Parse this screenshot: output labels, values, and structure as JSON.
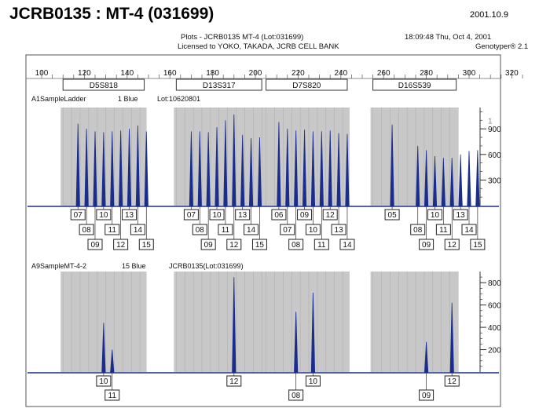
{
  "page": {
    "title": "JCRB0135 : MT-4 (031699)",
    "date": "2001.10.9"
  },
  "header": {
    "plots": "Plots - JCRB0135  MT-4  (Lot:031699)",
    "license": "Licensed to YOKO, TAKADA, JCRB CELL BANK",
    "time": "18:09:48  Thu, Oct 4, 2001",
    "software": "Genotyper® 2.1"
  },
  "chart_data": {
    "type": "line",
    "x_axis": {
      "min": 95,
      "max": 330,
      "ticks": [
        100,
        120,
        140,
        160,
        180,
        200,
        220,
        240,
        260,
        280,
        300,
        320
      ]
    },
    "markers": [
      {
        "label": "D5S818",
        "range": [
          110,
          148
        ]
      },
      {
        "label": "D13S317",
        "range": [
          163,
          203
        ]
      },
      {
        "label": "D7S820",
        "range": [
          205,
          243
        ]
      },
      {
        "label": "D16S539",
        "range": [
          255,
          294
        ]
      }
    ],
    "panels": [
      {
        "sample": "A1SampleLadder",
        "dye": "1 Blue",
        "lot": "Lot:10620801",
        "y_ticks": [
          300,
          600,
          900
        ],
        "y_tick_extra": "1",
        "y_max": 1150,
        "peaks": [
          {
            "marker": "D5S818",
            "allele": "07",
            "size": 117.0,
            "height": 960
          },
          {
            "marker": "D5S818",
            "allele": "08",
            "size": 121.0,
            "height": 900
          },
          {
            "marker": "D5S818",
            "allele": "09",
            "size": 125.0,
            "height": 870
          },
          {
            "marker": "D5S818",
            "allele": "10",
            "size": 129.0,
            "height": 860
          },
          {
            "marker": "D5S818",
            "allele": "11",
            "size": 133.0,
            "height": 870
          },
          {
            "marker": "D5S818",
            "allele": "12",
            "size": 137.0,
            "height": 880
          },
          {
            "marker": "D5S818",
            "allele": "13",
            "size": 141.0,
            "height": 900
          },
          {
            "marker": "D5S818",
            "allele": "14",
            "size": 145.0,
            "height": 940
          },
          {
            "marker": "D5S818",
            "allele": "15",
            "size": 149.0,
            "height": 870
          },
          {
            "marker": "D13S317",
            "allele": "07",
            "size": 170.0,
            "height": 870
          },
          {
            "marker": "D13S317",
            "allele": "08",
            "size": 174.0,
            "height": 870
          },
          {
            "marker": "D13S317",
            "allele": "09",
            "size": 178.0,
            "height": 860
          },
          {
            "marker": "D13S317",
            "allele": "10",
            "size": 182.0,
            "height": 920
          },
          {
            "marker": "D13S317",
            "allele": "11",
            "size": 186.0,
            "height": 1000
          },
          {
            "marker": "D13S317",
            "allele": "12",
            "size": 190.0,
            "height": 1070
          },
          {
            "marker": "D13S317",
            "allele": "13",
            "size": 194.0,
            "height": 830
          },
          {
            "marker": "D13S317",
            "allele": "14",
            "size": 198.0,
            "height": 790
          },
          {
            "marker": "D13S317",
            "allele": "15",
            "size": 202.0,
            "height": 800
          },
          {
            "marker": "D7S820",
            "allele": "06",
            "size": 211.0,
            "height": 980
          },
          {
            "marker": "D7S820",
            "allele": "07",
            "size": 215.0,
            "height": 900
          },
          {
            "marker": "D7S820",
            "allele": "08",
            "size": 219.0,
            "height": 880
          },
          {
            "marker": "D7S820",
            "allele": "09",
            "size": 223.0,
            "height": 890
          },
          {
            "marker": "D7S820",
            "allele": "10",
            "size": 227.0,
            "height": 870
          },
          {
            "marker": "D7S820",
            "allele": "11",
            "size": 231.0,
            "height": 870
          },
          {
            "marker": "D7S820",
            "allele": "12",
            "size": 235.0,
            "height": 880
          },
          {
            "marker": "D7S820",
            "allele": "13",
            "size": 239.0,
            "height": 850
          },
          {
            "marker": "D7S820",
            "allele": "14",
            "size": 243.0,
            "height": 840
          },
          {
            "marker": "D16S539",
            "allele": "05",
            "size": 264.0,
            "height": 950
          },
          {
            "marker": "D16S539",
            "allele": "08",
            "size": 276.0,
            "height": 700
          },
          {
            "marker": "D16S539",
            "allele": "09",
            "size": 280.0,
            "height": 650
          },
          {
            "marker": "D16S539",
            "allele": "10",
            "size": 284.0,
            "height": 580
          },
          {
            "marker": "D16S539",
            "allele": "11",
            "size": 288.0,
            "height": 560
          },
          {
            "marker": "D16S539",
            "allele": "12",
            "size": 292.0,
            "height": 560
          },
          {
            "marker": "D16S539",
            "allele": "13",
            "size": 296.0,
            "height": 600
          },
          {
            "marker": "D16S539",
            "allele": "14",
            "size": 300.0,
            "height": 640
          },
          {
            "marker": "D16S539",
            "allele": "15",
            "size": 304.0,
            "height": 650
          }
        ]
      },
      {
        "sample": "A9SampleMT-4-2",
        "dye": "15 Blue",
        "lot": "JCRB0135(Lot:031699)",
        "y_ticks": [
          200,
          400,
          600,
          800
        ],
        "y_max": 900,
        "peaks": [
          {
            "marker": "D5S818",
            "allele": "10",
            "size": 129.0,
            "height": 440
          },
          {
            "marker": "D5S818",
            "allele": "11",
            "size": 133.0,
            "height": 200
          },
          {
            "marker": "D13S317",
            "allele": "12",
            "size": 190.0,
            "height": 850
          },
          {
            "marker": "D7S820",
            "allele": "08",
            "size": 219.0,
            "height": 540
          },
          {
            "marker": "D7S820",
            "allele": "10",
            "size": 227.0,
            "height": 710
          },
          {
            "marker": "D16S539",
            "allele": "09",
            "size": 280.0,
            "height": 270
          },
          {
            "marker": "D16S539",
            "allele": "12",
            "size": 292.0,
            "height": 620
          }
        ]
      }
    ]
  }
}
